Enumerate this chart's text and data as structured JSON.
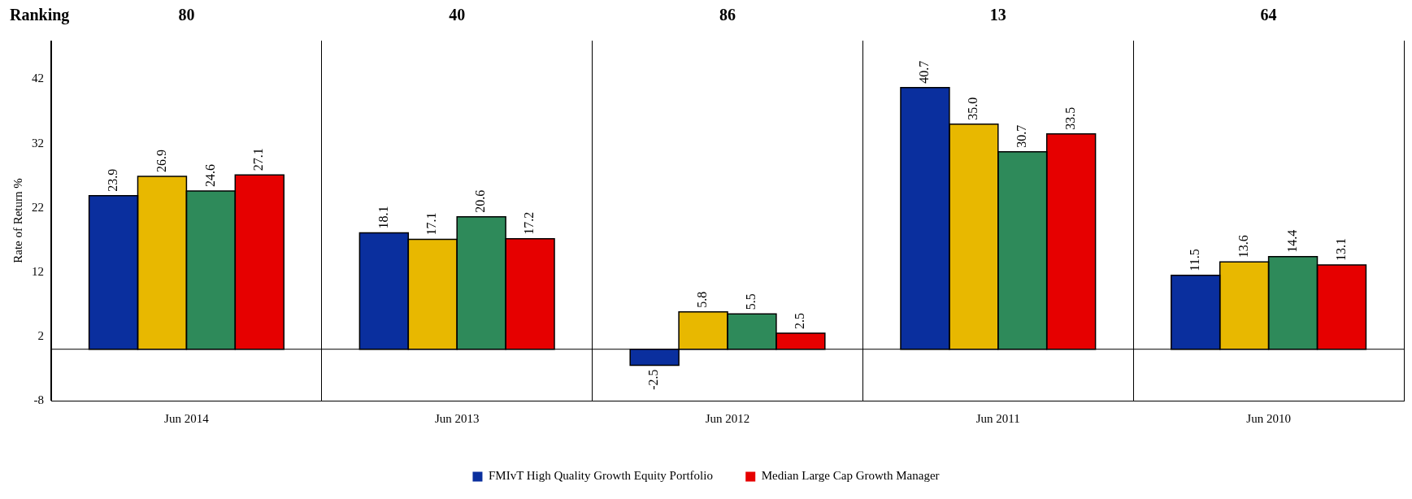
{
  "chart_data": {
    "type": "bar",
    "ylabel": "Rate of Return %",
    "categories": [
      "Jun 2014",
      "Jun 2013",
      "Jun 2012",
      "Jun 2011",
      "Jun 2010"
    ],
    "series": [
      {
        "name": "FMIvT High Quality Growth Equity Portfolio",
        "color": "#0a2f9e",
        "values": [
          23.9,
          18.1,
          -2.5,
          40.7,
          11.5
        ],
        "value_labels": [
          "23.9",
          "18.1",
          "-2.5",
          "40.7",
          "11.5"
        ]
      },
      {
        "color": "#e8b800",
        "values": [
          26.9,
          17.1,
          5.8,
          35.0,
          13.6
        ],
        "value_labels": [
          "26.9",
          "17.1",
          "5.8",
          "35.0",
          "13.6"
        ]
      },
      {
        "color": "#2e8a5a",
        "values": [
          24.6,
          20.6,
          5.5,
          30.7,
          14.4
        ],
        "value_labels": [
          "24.6",
          "20.6",
          "5.5",
          "30.7",
          "14.4"
        ]
      },
      {
        "name": "Median Large Cap Growth Manager",
        "color": "#e60000",
        "values": [
          27.1,
          17.2,
          2.5,
          33.5,
          13.1
        ],
        "value_labels": [
          "27.1",
          "17.2",
          "2.5",
          "33.5",
          "13.1"
        ]
      }
    ],
    "annotations": [
      "Ranking",
      "80",
      "40",
      "86",
      "13",
      "64"
    ],
    "ylim": [
      -8,
      48
    ],
    "yticks": [
      -8,
      2,
      12,
      22,
      32,
      42
    ],
    "grid": "x",
    "legend": "bottom",
    "ref_lines": [
      {
        "axis": "y",
        "value": 0,
        "color": "#000000"
      }
    ]
  }
}
